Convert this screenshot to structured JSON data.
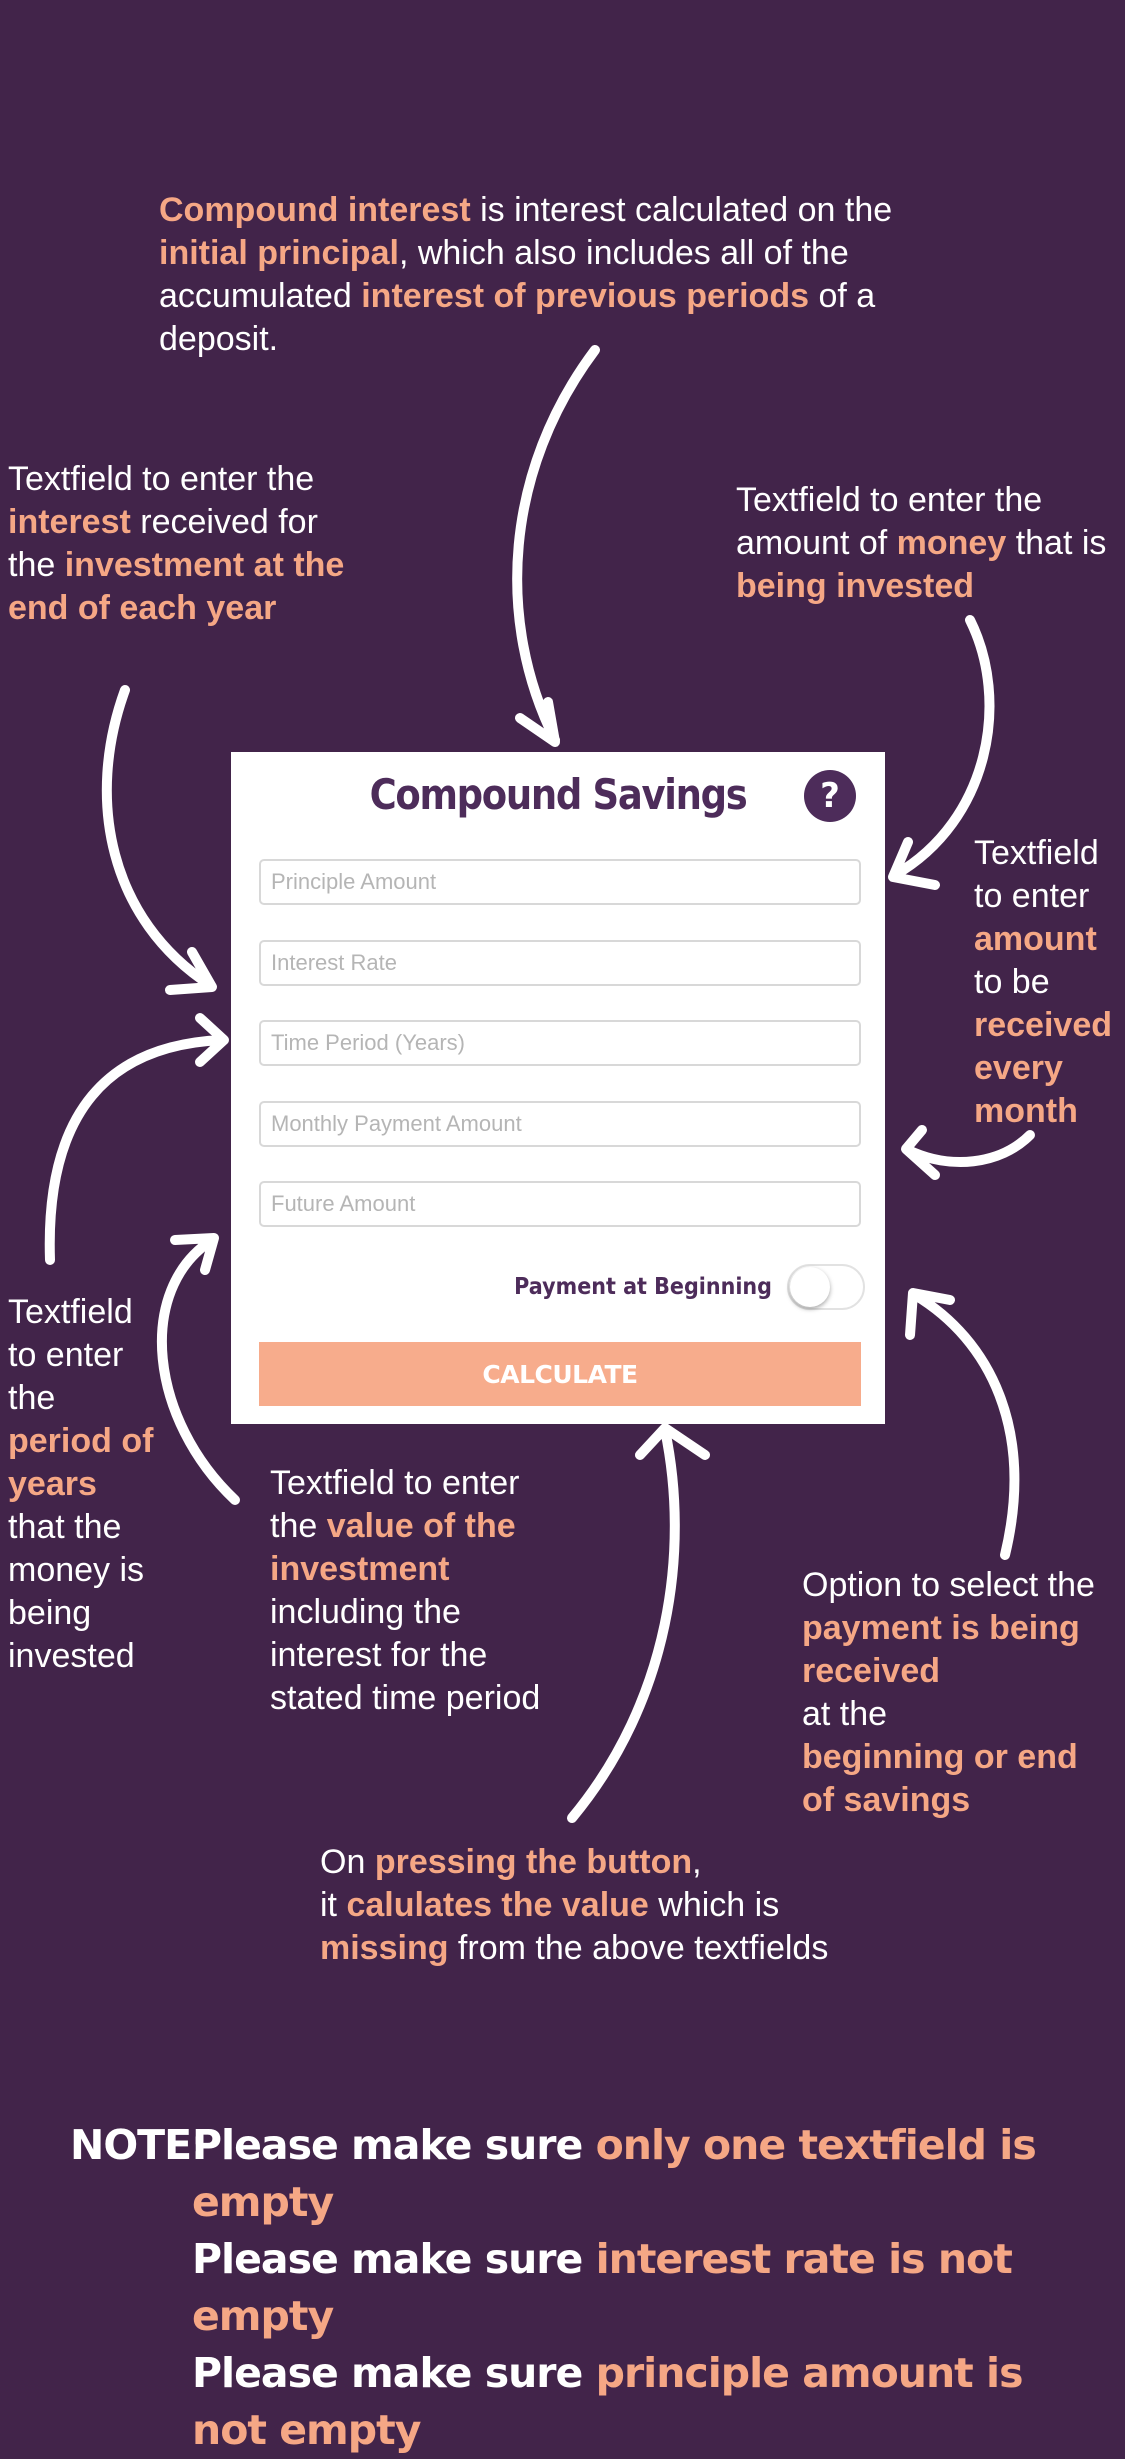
{
  "colors": {
    "background": "#42244a",
    "highlight": "#f5a785",
    "brand_purple": "#4d2c5a",
    "button": "#f7ac8c"
  },
  "intro": {
    "hl1": "Compound interest",
    "t1": " is interest calculated on the ",
    "hl2": "initial principal",
    "t2": ", which also includes all of the accumulated ",
    "hl3": "interest of previous periods",
    "t3": " of a deposit."
  },
  "annotations": {
    "interest": {
      "t1": "Textfield to enter the",
      "hl1": "interest",
      "t2": " received for the ",
      "hl2": "investment at the end of each year"
    },
    "principal": {
      "t1": "Textfield to enter the amount of ",
      "hl1": "money",
      "t2": " that is ",
      "hl2": "being invested"
    },
    "monthly": {
      "t1": "Textfield to enter",
      "hl1": "amount",
      "t2": "to be",
      "hl2": "received every month"
    },
    "period": {
      "t1": "Textfield to enter the",
      "hl1": "period of years",
      "t2": "that the money is being invested"
    },
    "future": {
      "t1": "Textfield to enter the ",
      "hl1": "value of the investment",
      "t2": "including the interest for the stated time period"
    },
    "toggle": {
      "t1": "Option to select the ",
      "hl1": "payment is being received",
      "t2": "at the",
      "hl2": "beginning or end of savings"
    },
    "button": {
      "t1": "On ",
      "hl1": "pressing the button",
      "t2": ",",
      "t3": "it ",
      "hl2": "calulates the value",
      "t4": " which is",
      "hl3": "missing",
      "t5": " from the above textfields"
    }
  },
  "app": {
    "title": "Compound Savings",
    "help_icon": "question-circle-icon",
    "help_label": "?",
    "fields": {
      "principal": {
        "placeholder": "Principle Amount",
        "value": ""
      },
      "interest": {
        "placeholder": "Interest Rate",
        "value": ""
      },
      "time": {
        "placeholder": "Time Period (Years)",
        "value": ""
      },
      "monthly": {
        "placeholder": "Monthly Payment Amount",
        "value": ""
      },
      "future": {
        "placeholder": "Future Amount",
        "value": ""
      }
    },
    "toggle_label": "Payment at Beginning",
    "toggle_on": false,
    "button_label": "CALCULATE"
  },
  "note": {
    "label": "NOTE:",
    "prefix": "Please make sure ",
    "line1_hl": "only one textfield is empty",
    "line2_hl": "interest rate is not empty",
    "line3_hl": "principle amount is not empty"
  }
}
